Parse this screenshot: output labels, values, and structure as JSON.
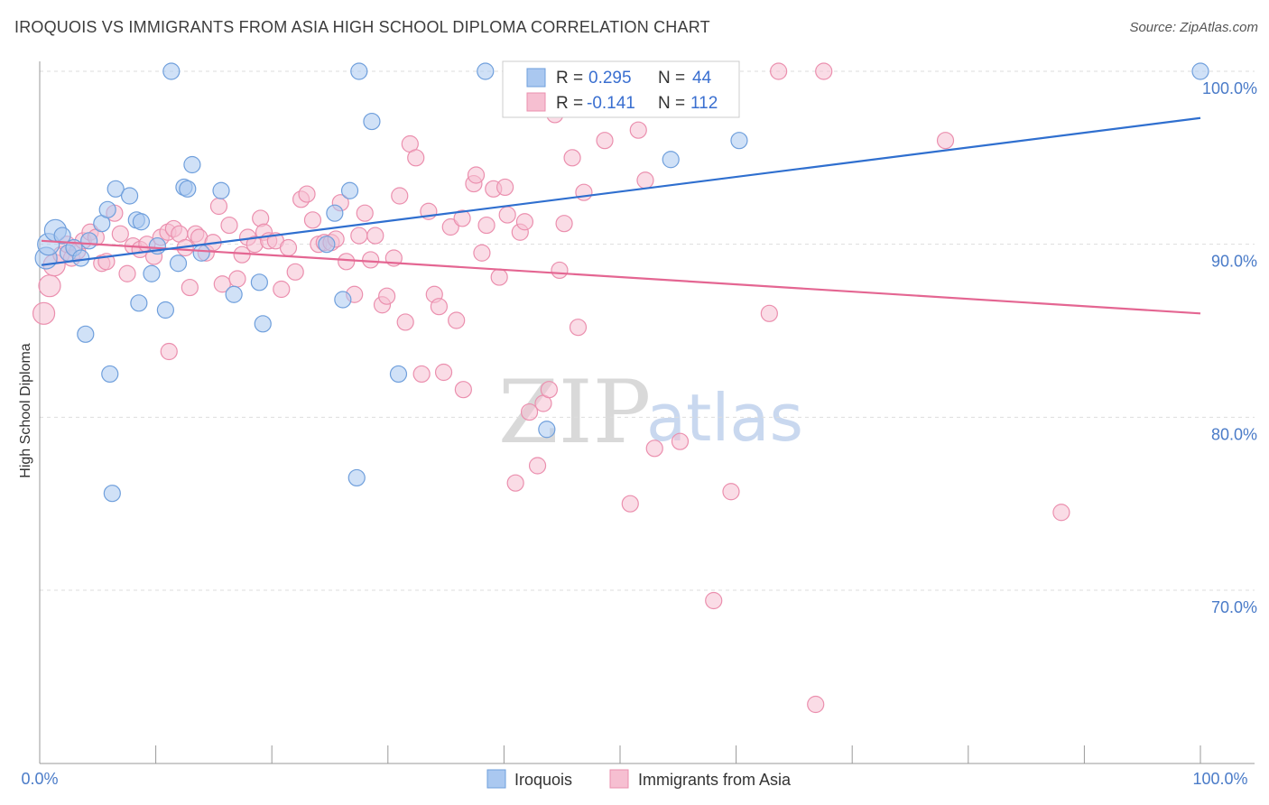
{
  "header": {
    "title": "IROQUOIS VS IMMIGRANTS FROM ASIA HIGH SCHOOL DIPLOMA CORRELATION CHART",
    "source": "Source: ZipAtlas.com"
  },
  "legend": {
    "rows": [
      {
        "r_label": "R = ",
        "r_value": "0.295",
        "n_label": "N = ",
        "n_value": "44"
      },
      {
        "r_label": "R = ",
        "r_value": "-0.141",
        "n_label": "N = ",
        "n_value": "112"
      }
    ]
  },
  "watermark": {
    "zip": "ZIP",
    "atlas": "atlas"
  },
  "colors": {
    "iroquois_fill": "#aac8f0",
    "iroquois_stroke": "#6f9fdc",
    "iroquois_line": "#2f6fcf",
    "asia_fill": "#f6bfd1",
    "asia_stroke": "#eb8fae",
    "asia_line": "#e46692",
    "tick_text": "#4a7bc8",
    "grid": "#dddddd"
  },
  "chart_data": {
    "type": "scatter",
    "title": "IROQUOIS VS IMMIGRANTS FROM ASIA HIGH SCHOOL DIPLOMA CORRELATION CHART",
    "xlabel": "",
    "ylabel": "High School Diploma",
    "xlim": [
      0,
      100
    ],
    "ylim": [
      60,
      101
    ],
    "x_tick_labels": [
      "0.0%",
      "100.0%"
    ],
    "y_ticks": [
      70,
      80,
      90,
      100
    ],
    "y_tick_labels": [
      "70.0%",
      "80.0%",
      "90.0%",
      "100.0%"
    ],
    "grid": "horizontal dashed",
    "legend_position": "bottom-center",
    "series": [
      {
        "name": "Iroquois",
        "r": 0.295,
        "n": 44,
        "trend": {
          "x": [
            0,
            100
          ],
          "y": [
            88.8,
            97.3
          ]
        },
        "points": [
          [
            0.4,
            89.2
          ],
          [
            0.6,
            90.0
          ],
          [
            1.2,
            90.8
          ],
          [
            1.8,
            90.5
          ],
          [
            2.3,
            89.5
          ],
          [
            2.8,
            89.8
          ],
          [
            3.4,
            89.2
          ],
          [
            4.1,
            90.2
          ],
          [
            3.8,
            84.8
          ],
          [
            5.2,
            91.2
          ],
          [
            5.7,
            92.0
          ],
          [
            6.4,
            93.2
          ],
          [
            6.1,
            75.6
          ],
          [
            5.9,
            82.5
          ],
          [
            7.6,
            92.8
          ],
          [
            8.2,
            91.4
          ],
          [
            8.4,
            86.6
          ],
          [
            8.6,
            91.3
          ],
          [
            9.5,
            88.3
          ],
          [
            10.0,
            89.9
          ],
          [
            10.7,
            86.2
          ],
          [
            11.2,
            100.0
          ],
          [
            11.8,
            88.9
          ],
          [
            12.3,
            93.3
          ],
          [
            12.6,
            93.2
          ],
          [
            13.0,
            94.6
          ],
          [
            13.8,
            89.5
          ],
          [
            15.5,
            93.1
          ],
          [
            16.6,
            87.1
          ],
          [
            19.1,
            85.4
          ],
          [
            18.8,
            87.8
          ],
          [
            24.6,
            90.0
          ],
          [
            25.3,
            91.8
          ],
          [
            26.0,
            86.8
          ],
          [
            26.6,
            93.1
          ],
          [
            27.2,
            76.5
          ],
          [
            27.4,
            100.0
          ],
          [
            28.5,
            97.1
          ],
          [
            30.8,
            82.5
          ],
          [
            38.3,
            100.0
          ],
          [
            43.6,
            79.3
          ],
          [
            54.3,
            94.9
          ],
          [
            60.2,
            96.0
          ],
          [
            100.0,
            100.0
          ]
        ]
      },
      {
        "name": "Immigrants from Asia",
        "r": -0.141,
        "n": 112,
        "trend": {
          "x": [
            0,
            100
          ],
          "y": [
            90.2,
            86.0
          ]
        },
        "points": [
          [
            0.2,
            86.0
          ],
          [
            0.7,
            87.6
          ],
          [
            1.1,
            88.8
          ],
          [
            1.7,
            89.4
          ],
          [
            2.2,
            90.0
          ],
          [
            2.6,
            89.2
          ],
          [
            3.1,
            89.6
          ],
          [
            3.6,
            90.2
          ],
          [
            4.2,
            90.7
          ],
          [
            4.7,
            90.4
          ],
          [
            5.2,
            88.9
          ],
          [
            5.6,
            89.0
          ],
          [
            6.3,
            91.8
          ],
          [
            6.8,
            90.6
          ],
          [
            7.4,
            88.3
          ],
          [
            7.9,
            89.9
          ],
          [
            8.5,
            89.7
          ],
          [
            9.1,
            90.0
          ],
          [
            9.7,
            89.3
          ],
          [
            10.3,
            90.4
          ],
          [
            10.9,
            90.7
          ],
          [
            11.0,
            83.8
          ],
          [
            11.4,
            90.9
          ],
          [
            11.9,
            90.6
          ],
          [
            12.4,
            89.8
          ],
          [
            12.8,
            87.5
          ],
          [
            13.3,
            90.6
          ],
          [
            13.6,
            90.4
          ],
          [
            14.2,
            89.5
          ],
          [
            14.8,
            90.1
          ],
          [
            15.3,
            92.2
          ],
          [
            15.6,
            87.7
          ],
          [
            16.2,
            91.1
          ],
          [
            16.9,
            88.0
          ],
          [
            17.3,
            89.4
          ],
          [
            17.8,
            90.4
          ],
          [
            18.4,
            90.0
          ],
          [
            18.9,
            91.5
          ],
          [
            19.2,
            90.7
          ],
          [
            19.6,
            90.2
          ],
          [
            20.2,
            90.2
          ],
          [
            20.7,
            87.4
          ],
          [
            21.3,
            89.8
          ],
          [
            21.9,
            88.4
          ],
          [
            22.4,
            92.6
          ],
          [
            22.9,
            92.9
          ],
          [
            23.4,
            91.4
          ],
          [
            23.9,
            90.0
          ],
          [
            24.4,
            90.1
          ],
          [
            25.0,
            90.1
          ],
          [
            25.4,
            90.3
          ],
          [
            25.8,
            92.4
          ],
          [
            26.3,
            89.0
          ],
          [
            27.0,
            87.1
          ],
          [
            27.4,
            90.5
          ],
          [
            27.9,
            91.8
          ],
          [
            28.4,
            89.1
          ],
          [
            28.8,
            90.5
          ],
          [
            29.4,
            86.5
          ],
          [
            29.8,
            87.0
          ],
          [
            30.4,
            89.2
          ],
          [
            30.9,
            92.8
          ],
          [
            31.4,
            85.5
          ],
          [
            31.8,
            95.8
          ],
          [
            32.3,
            95.0
          ],
          [
            32.8,
            82.5
          ],
          [
            33.4,
            91.9
          ],
          [
            33.9,
            87.1
          ],
          [
            34.3,
            86.4
          ],
          [
            34.7,
            82.6
          ],
          [
            35.3,
            91.0
          ],
          [
            35.8,
            85.6
          ],
          [
            36.3,
            91.5
          ],
          [
            36.4,
            81.6
          ],
          [
            37.3,
            93.5
          ],
          [
            37.5,
            94.0
          ],
          [
            38.0,
            89.5
          ],
          [
            38.4,
            91.1
          ],
          [
            39.0,
            93.2
          ],
          [
            39.5,
            88.1
          ],
          [
            40.0,
            93.3
          ],
          [
            40.2,
            91.7
          ],
          [
            40.9,
            76.2
          ],
          [
            41.3,
            90.7
          ],
          [
            41.7,
            91.3
          ],
          [
            42.1,
            80.3
          ],
          [
            42.8,
            77.2
          ],
          [
            43.3,
            80.8
          ],
          [
            43.8,
            81.6
          ],
          [
            44.3,
            97.5
          ],
          [
            44.7,
            88.5
          ],
          [
            45.1,
            91.2
          ],
          [
            45.8,
            95.0
          ],
          [
            46.3,
            85.2
          ],
          [
            46.8,
            93.0
          ],
          [
            47.3,
            99.0
          ],
          [
            48.6,
            96.0
          ],
          [
            49.5,
            98.2
          ],
          [
            50.8,
            75.0
          ],
          [
            51.5,
            96.6
          ],
          [
            52.1,
            93.7
          ],
          [
            52.9,
            78.2
          ],
          [
            53.6,
            98.8
          ],
          [
            55.1,
            78.6
          ],
          [
            58.0,
            69.4
          ],
          [
            59.5,
            75.7
          ],
          [
            62.8,
            86.0
          ],
          [
            63.6,
            100.0
          ],
          [
            66.8,
            63.4
          ],
          [
            67.5,
            100.0
          ],
          [
            78.0,
            96.0
          ],
          [
            88.0,
            74.5
          ]
        ]
      }
    ]
  },
  "bottom_legend": {
    "items": [
      "Iroquois",
      "Immigrants from Asia"
    ]
  }
}
